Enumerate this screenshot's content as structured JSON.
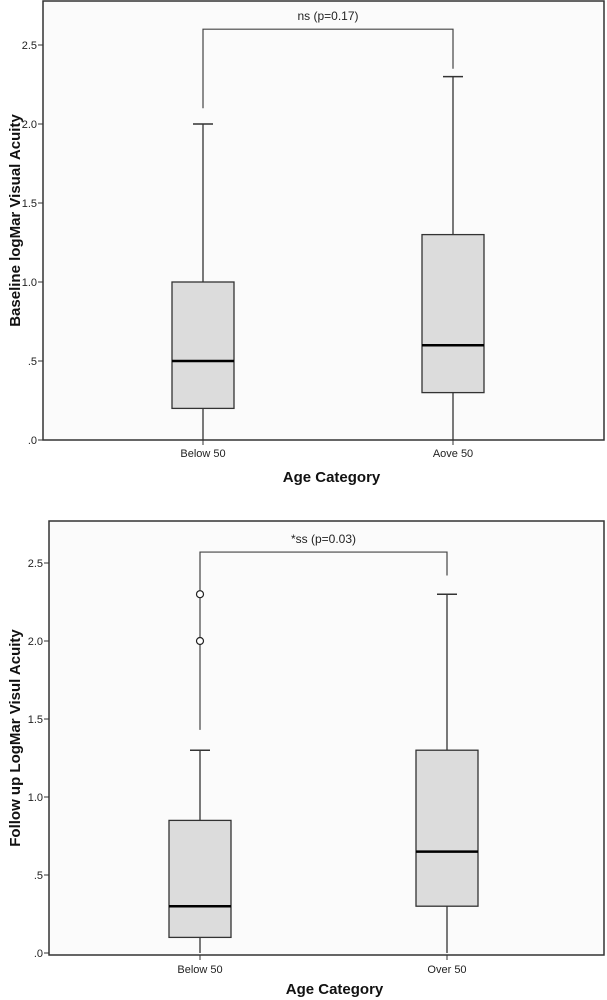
{
  "chart_data": [
    {
      "type": "box",
      "title": "",
      "xlabel": "Age Category",
      "ylabel": "Baseline logMar Visual Acuity",
      "ylim": [
        0,
        2.8
      ],
      "yticks": [
        0,
        0.5,
        1.0,
        1.5,
        2.0,
        2.5
      ],
      "ytick_labels": [
        ".0",
        ".5",
        "1.0",
        "1.5",
        "2.0",
        "2.5"
      ],
      "categories": [
        "Below 50",
        "Aove 50"
      ],
      "boxes": [
        {
          "min": 0.0,
          "q1": 0.2,
          "median": 0.5,
          "q3": 1.0,
          "max": 2.0,
          "outliers": []
        },
        {
          "min": 0.0,
          "q1": 0.3,
          "median": 0.6,
          "q3": 1.3,
          "max": 2.3,
          "outliers": []
        }
      ],
      "annotation": {
        "text": "ns (p=0.17)",
        "bracket_y": 2.6,
        "left_end": 2.1,
        "right_end": 2.35
      },
      "colors": {
        "box_fill": "#dcdcdc",
        "line": "#333333",
        "median": "#000000",
        "background": "#fbfbfb"
      }
    },
    {
      "type": "box",
      "title": "",
      "xlabel": "Age Category",
      "ylabel": "Follow up LogMar Visul Acuity",
      "ylim": [
        0,
        2.8
      ],
      "yticks": [
        0,
        0.5,
        1.0,
        1.5,
        2.0,
        2.5
      ],
      "ytick_labels": [
        ".0",
        ".5",
        "1.0",
        "1.5",
        "2.0",
        "2.5"
      ],
      "categories": [
        "Below 50",
        "Over 50"
      ],
      "boxes": [
        {
          "min": 0.0,
          "q1": 0.1,
          "median": 0.3,
          "q3": 0.85,
          "max": 1.3,
          "outliers": [
            2.0,
            2.3
          ]
        },
        {
          "min": 0.0,
          "q1": 0.3,
          "median": 0.65,
          "q3": 1.3,
          "max": 2.3,
          "outliers": []
        }
      ],
      "annotation": {
        "text": "*ss (p=0.03)",
        "bracket_y": 2.57,
        "left_end": 1.43,
        "right_end": 2.42
      },
      "colors": {
        "box_fill": "#dcdcdc",
        "line": "#333333",
        "median": "#000000",
        "background": "#fbfbfb"
      }
    }
  ]
}
